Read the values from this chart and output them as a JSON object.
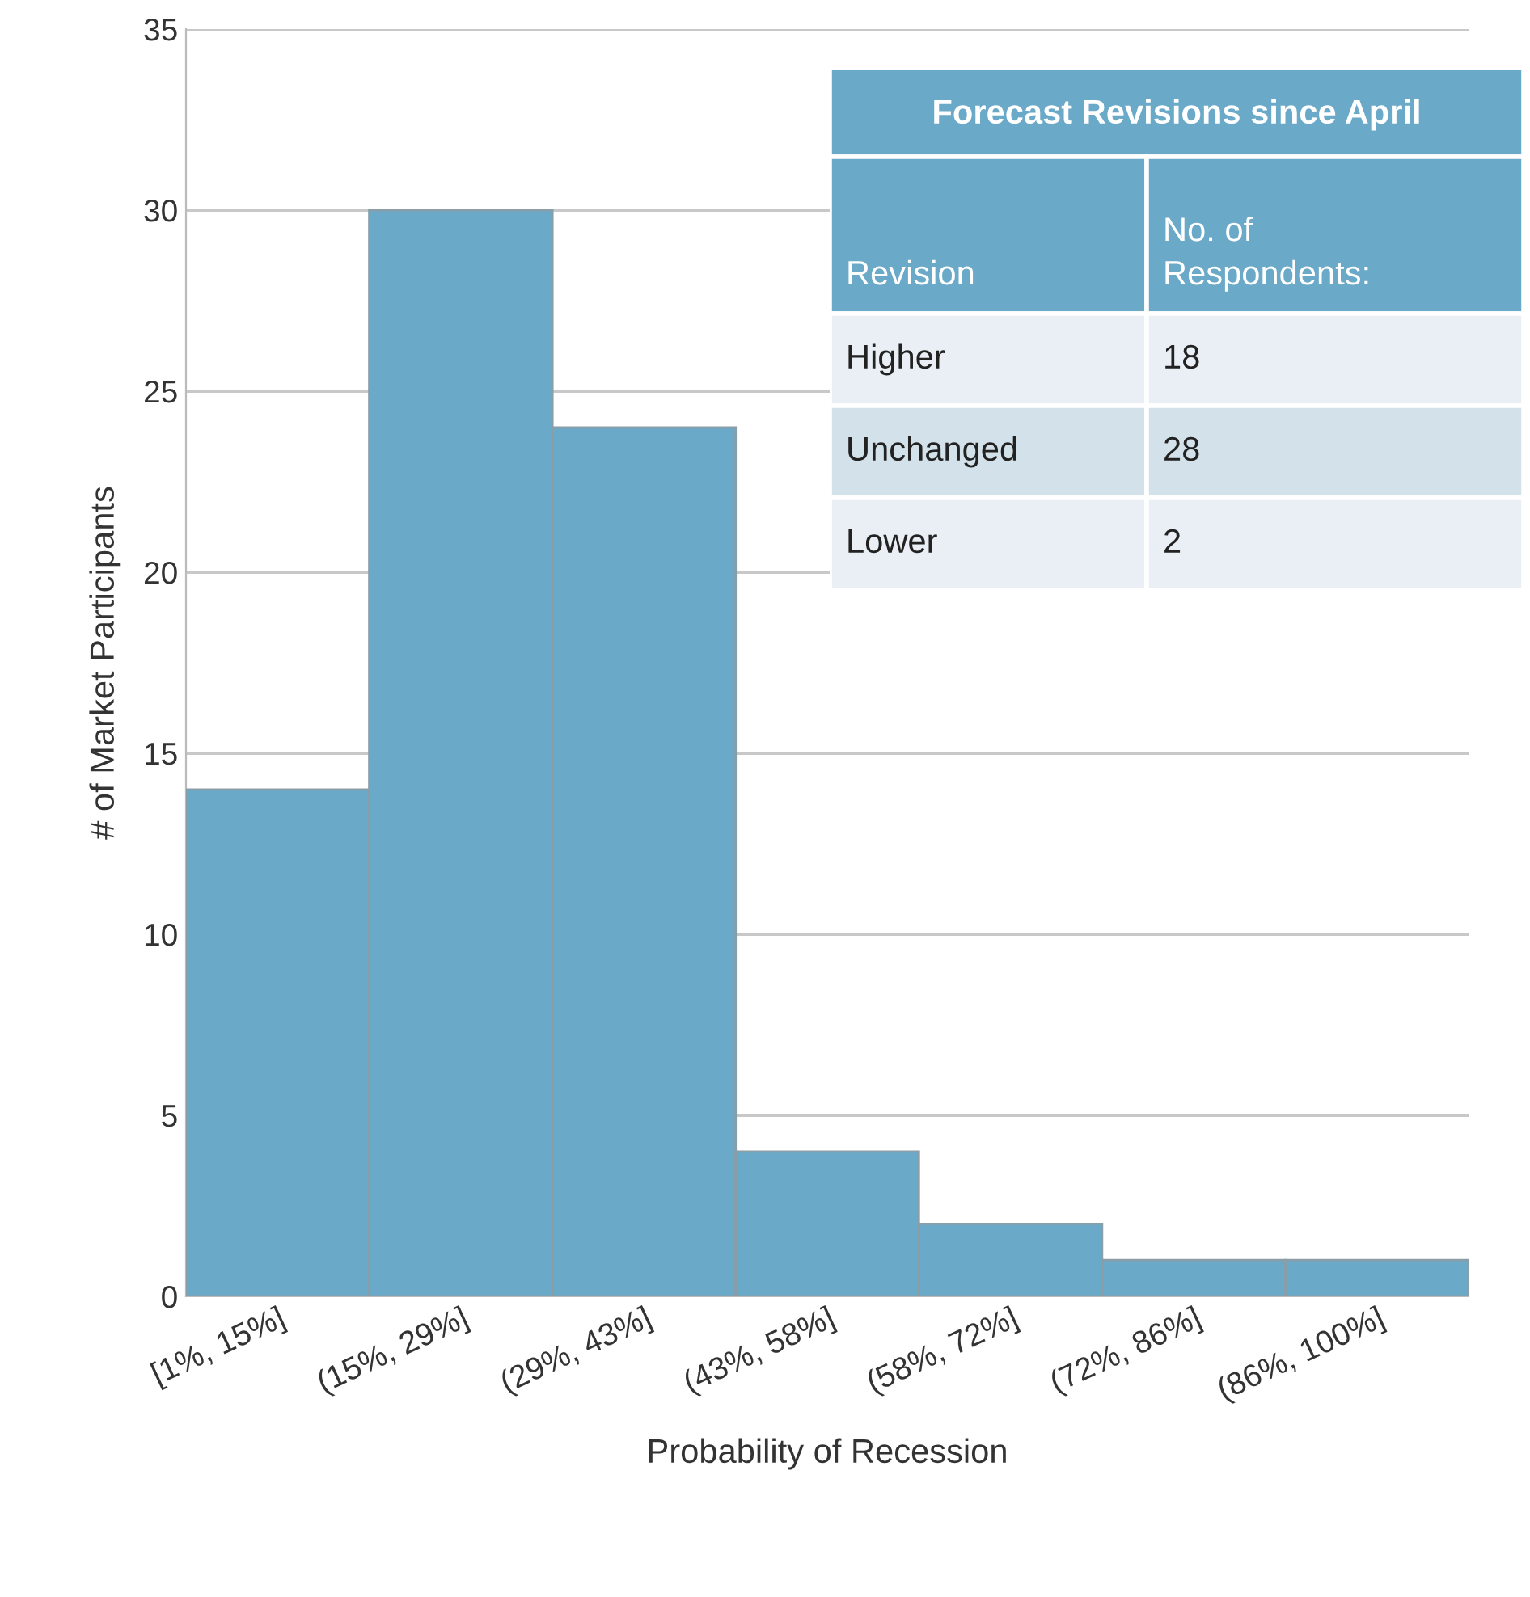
{
  "chart_data": [
    {
      "type": "bar",
      "categories": [
        "[1%, 15%]",
        "(15%, 29%]",
        "(29%, 43%]",
        "(43%, 58%]",
        "(58%, 72%]",
        "(72%, 86%]",
        "(86%, 100%]"
      ],
      "values": [
        14,
        30,
        24,
        4,
        2,
        1,
        1
      ],
      "color": "#6aa9c8",
      "xlabel": "Probability of Recession",
      "ylabel": "# of Market Participants",
      "ylim": [
        0,
        35
      ],
      "yticks": [
        0,
        5,
        10,
        15,
        20,
        25,
        30,
        35
      ],
      "grid": "y"
    },
    {
      "type": "other",
      "title": "Forecast Revisions since April",
      "annotations": [
        "Revision",
        "No. of\nRespondents:",
        "Higher",
        "18",
        "Unchanged",
        "28",
        "Lower",
        "2"
      ]
    }
  ]
}
